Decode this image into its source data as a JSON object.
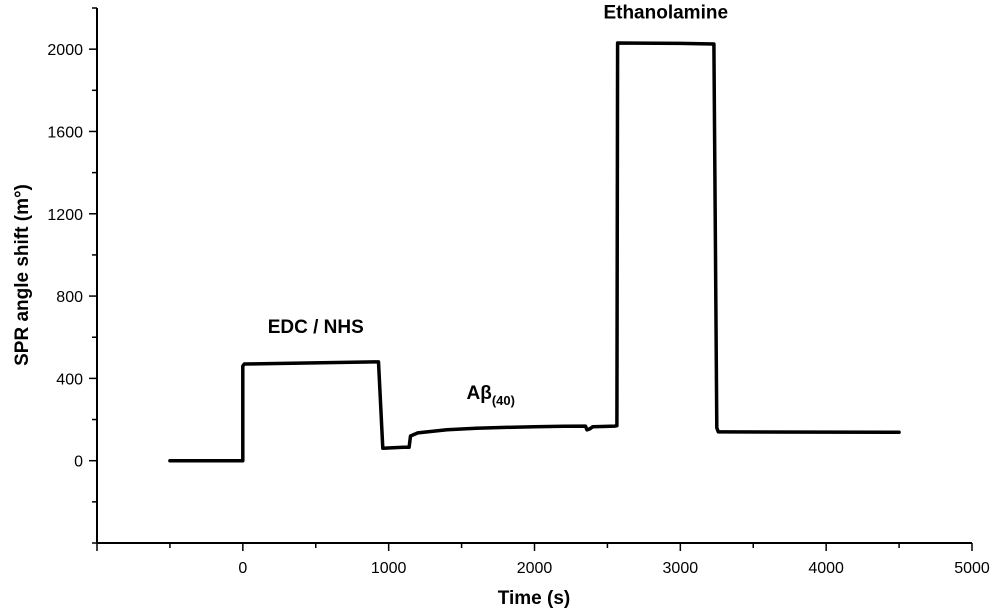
{
  "chart_data": {
    "type": "line",
    "title": "",
    "xlabel": "Time (s)",
    "ylabel": "SPR angle shift (m°)",
    "xlim": [
      -1000,
      5000
    ],
    "ylim": [
      -400,
      2200
    ],
    "x_ticks": [
      0,
      1000,
      2000,
      3000,
      4000,
      5000
    ],
    "x_tick_labels": [
      "0",
      "1000",
      "2000",
      "3000",
      "4000",
      "5000"
    ],
    "y_ticks": [
      0,
      400,
      800,
      1200,
      1600,
      2000
    ],
    "y_tick_labels": [
      "0",
      "400",
      "800",
      "1200",
      "1600",
      "2000"
    ],
    "grid": false,
    "legend": "none",
    "series": [
      {
        "x": [
          -500,
          0,
          0,
          10,
          900,
          930,
          960,
          1100,
          1140,
          1150,
          1200,
          1400,
          1600,
          1800,
          2000,
          2200,
          2350,
          2360,
          2380,
          2400,
          2550,
          2565,
          2570,
          2580,
          3000,
          3230,
          3250,
          3260,
          3300,
          4500
        ],
        "y": [
          0,
          0,
          460,
          470,
          480,
          480,
          60,
          65,
          65,
          120,
          135,
          150,
          158,
          162,
          165,
          167,
          168,
          150,
          155,
          165,
          168,
          170,
          2030,
          2030,
          2028,
          2025,
          160,
          140,
          140,
          138
        ]
      }
    ],
    "annotations": [
      {
        "label": "EDC / NHS",
        "x": 500,
        "y": 620
      },
      {
        "label": "Aβ",
        "subscript": "(40)",
        "x": 1700,
        "y": 300
      },
      {
        "label": "Ethanolamine",
        "x": 2900,
        "y": 2150
      }
    ]
  }
}
